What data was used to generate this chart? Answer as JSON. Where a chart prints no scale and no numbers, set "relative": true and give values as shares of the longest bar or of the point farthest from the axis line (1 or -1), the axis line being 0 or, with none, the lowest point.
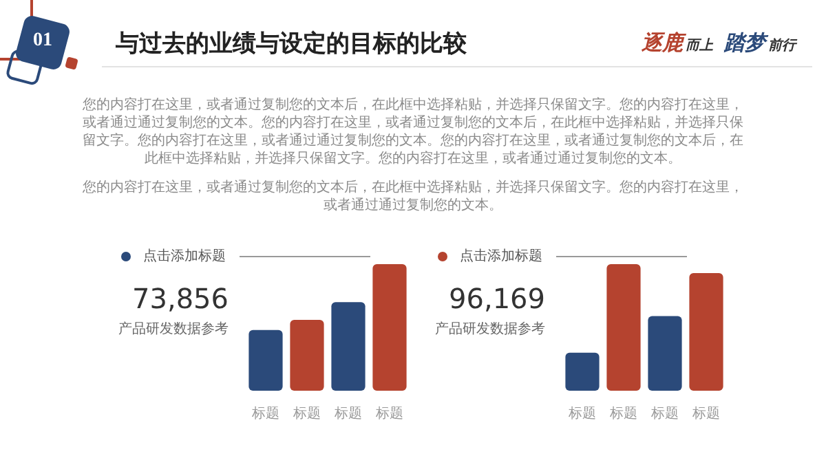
{
  "chart_data": [
    {
      "type": "other",
      "title": "与过去的业绩与设定的目标的比较",
      "annotations": [
        "01",
        "逐鹿",
        "而上",
        "踏梦",
        "前行",
        "您的内容打在这里，或者通过复制您的文本后，在此框中选择粘贴，并选择只保留文字。您的内容打在这里，或者通过通过复制您的文本。您的内容打在这里，或者通过复制您的文本后，在此框中选择粘贴，并选择只保留文字。您的内容打在这里，或者通过通过复制您的文本。您的内容打在这里，或者通过复制您的文本后，在此框中选择粘贴，并选择只保留文字。您的内容打在这里，或者通过通过复制您的文本。",
        "您的内容打在这里，或者通过复制您的文本后，在此框中选择粘贴，并选择只保留文字。您的内容打在这里，或者通过通过复制您的文本。"
      ]
    },
    {
      "type": "bar",
      "title": "点击添加标题",
      "annotations": [
        "73,856",
        "产品研发数据参考"
      ],
      "categories": [
        "标题",
        "标题",
        "标题",
        "标题"
      ],
      "values": [
        0.48,
        0.56,
        0.7,
        1
      ],
      "colors": [
        "#2b4a7a",
        "#b5432f",
        "#2b4a7a",
        "#b5432f"
      ],
      "relative": true
    },
    {
      "type": "bar",
      "title": "点击添加标题",
      "annotations": [
        "96,169",
        "产品研发数据参考"
      ],
      "categories": [
        "标题",
        "标题",
        "标题",
        "标题"
      ],
      "values": [
        0.3,
        1,
        0.59,
        0.93
      ],
      "colors": [
        "#2b4a7a",
        "#b5432f",
        "#2b4a7a",
        "#b5432f"
      ],
      "relative": true
    }
  ]
}
